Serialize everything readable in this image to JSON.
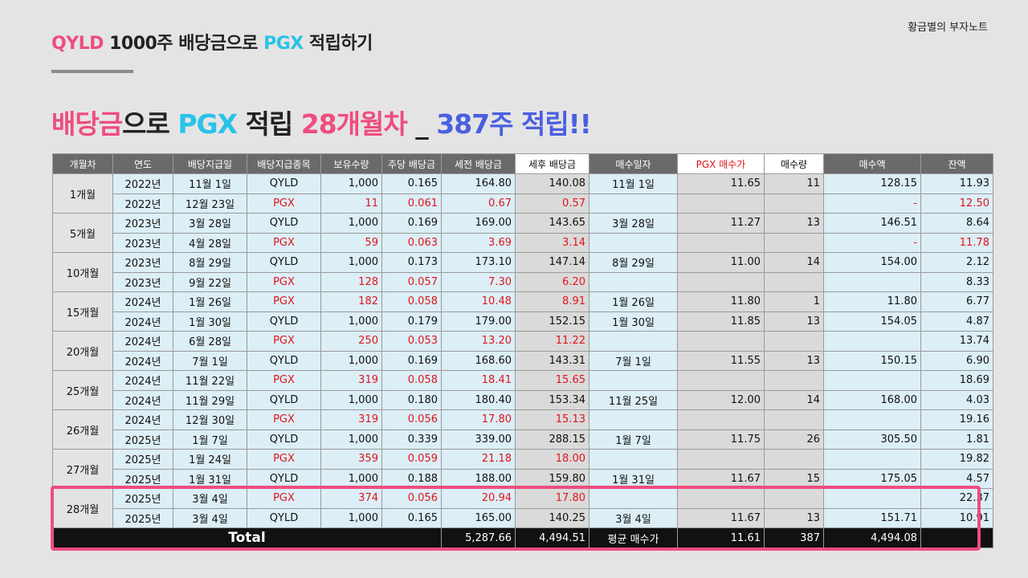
{
  "brand": "황금별의 부자노트",
  "subtitle": {
    "part1": "QYLD",
    "part2": " 1000주 배당금으로 ",
    "part3": "PGX",
    "part4": " 적립하기"
  },
  "headline": {
    "part1": "배당금",
    "part2": "으로 ",
    "part3": "PGX",
    "part4": " 적립 ",
    "part5": "28개월차",
    "part6": " _ ",
    "part7": "387주 적립!!"
  },
  "columns": [
    "개월차",
    "연도",
    "배당지급일",
    "배당지급종목",
    "보유수량",
    "주당 배당금",
    "세전 배당금",
    "세후 배당금",
    "매수일자",
    "PGX 매수가",
    "매수량",
    "매수액",
    "잔액"
  ],
  "groups": [
    {
      "label": "1개월",
      "rows": [
        {
          "year": "2022년",
          "date": "11월 1일",
          "ticker": "QYLD",
          "qty": "1,000",
          "dps": "0.165",
          "pre": "164.80",
          "post": "140.08",
          "buy_date": "11월 1일",
          "price": "11.65",
          "buy_qty": "11",
          "amount": "128.15",
          "balance": "11.93"
        },
        {
          "year": "2022년",
          "date": "12월 23일",
          "ticker": "PGX",
          "qty": "11",
          "dps": "0.061",
          "pre": "0.67",
          "post": "0.57",
          "buy_date": "",
          "price": "",
          "buy_qty": "",
          "amount": "-",
          "balance": "12.50"
        }
      ]
    },
    {
      "label": "5개월",
      "rows": [
        {
          "year": "2023년",
          "date": "3월 28일",
          "ticker": "QYLD",
          "qty": "1,000",
          "dps": "0.169",
          "pre": "169.00",
          "post": "143.65",
          "buy_date": "3월 28일",
          "price": "11.27",
          "buy_qty": "13",
          "amount": "146.51",
          "balance": "8.64"
        },
        {
          "year": "2023년",
          "date": "4월 28일",
          "ticker": "PGX",
          "qty": "59",
          "dps": "0.063",
          "pre": "3.69",
          "post": "3.14",
          "buy_date": "",
          "price": "",
          "buy_qty": "",
          "amount": "-",
          "balance": "11.78"
        }
      ]
    },
    {
      "label": "10개월",
      "rows": [
        {
          "year": "2023년",
          "date": "8월 29일",
          "ticker": "QYLD",
          "qty": "1,000",
          "dps": "0.173",
          "pre": "173.10",
          "post": "147.14",
          "buy_date": "8월 29일",
          "price": "11.00",
          "buy_qty": "14",
          "amount": "154.00",
          "balance": "2.12"
        },
        {
          "year": "2023년",
          "date": "9월 22일",
          "ticker": "PGX",
          "qty": "128",
          "dps": "0.057",
          "pre": "7.30",
          "post": "6.20",
          "buy_date": "",
          "price": "",
          "buy_qty": "",
          "amount": "",
          "balance": "8.33"
        }
      ]
    },
    {
      "label": "15개월",
      "rows": [
        {
          "year": "2024년",
          "date": "1월 26일",
          "ticker": "PGX",
          "qty": "182",
          "dps": "0.058",
          "pre": "10.48",
          "post": "8.91",
          "buy_date": "1월 26일",
          "price": "11.80",
          "buy_qty": "1",
          "amount": "11.80",
          "balance": "6.77"
        },
        {
          "year": "2024년",
          "date": "1월 30일",
          "ticker": "QYLD",
          "qty": "1,000",
          "dps": "0.179",
          "pre": "179.00",
          "post": "152.15",
          "buy_date": "1월 30일",
          "price": "11.85",
          "buy_qty": "13",
          "amount": "154.05",
          "balance": "4.87"
        }
      ]
    },
    {
      "label": "20개월",
      "rows": [
        {
          "year": "2024년",
          "date": "6월 28일",
          "ticker": "PGX",
          "qty": "250",
          "dps": "0.053",
          "pre": "13.20",
          "post": "11.22",
          "buy_date": "",
          "price": "",
          "buy_qty": "",
          "amount": "",
          "balance": "13.74"
        },
        {
          "year": "2024년",
          "date": "7월 1일",
          "ticker": "QYLD",
          "qty": "1,000",
          "dps": "0.169",
          "pre": "168.60",
          "post": "143.31",
          "buy_date": "7월 1일",
          "price": "11.55",
          "buy_qty": "13",
          "amount": "150.15",
          "balance": "6.90"
        }
      ]
    },
    {
      "label": "25개월",
      "rows": [
        {
          "year": "2024년",
          "date": "11월 22일",
          "ticker": "PGX",
          "qty": "319",
          "dps": "0.058",
          "pre": "18.41",
          "post": "15.65",
          "buy_date": "",
          "price": "",
          "buy_qty": "",
          "amount": "",
          "balance": "18.69"
        },
        {
          "year": "2024년",
          "date": "11월 29일",
          "ticker": "QYLD",
          "qty": "1,000",
          "dps": "0.180",
          "pre": "180.40",
          "post": "153.34",
          "buy_date": "11월 25일",
          "price": "12.00",
          "buy_qty": "14",
          "amount": "168.00",
          "balance": "4.03"
        }
      ]
    },
    {
      "label": "26개월",
      "rows": [
        {
          "year": "2024년",
          "date": "12월 30일",
          "ticker": "PGX",
          "qty": "319",
          "dps": "0.056",
          "pre": "17.80",
          "post": "15.13",
          "buy_date": "",
          "price": "",
          "buy_qty": "",
          "amount": "",
          "balance": "19.16"
        },
        {
          "year": "2025년",
          "date": "1월 7일",
          "ticker": "QYLD",
          "qty": "1,000",
          "dps": "0.339",
          "pre": "339.00",
          "post": "288.15",
          "buy_date": "1월 7일",
          "price": "11.75",
          "buy_qty": "26",
          "amount": "305.50",
          "balance": "1.81"
        }
      ]
    },
    {
      "label": "27개월",
      "rows": [
        {
          "year": "2025년",
          "date": "1월 24일",
          "ticker": "PGX",
          "qty": "359",
          "dps": "0.059",
          "pre": "21.18",
          "post": "18.00",
          "buy_date": "",
          "price": "",
          "buy_qty": "",
          "amount": "",
          "balance": "19.82"
        },
        {
          "year": "2025년",
          "date": "1월 31일",
          "ticker": "QYLD",
          "qty": "1,000",
          "dps": "0.188",
          "pre": "188.00",
          "post": "159.80",
          "buy_date": "1월 31일",
          "price": "11.67",
          "buy_qty": "15",
          "amount": "175.05",
          "balance": "4.57"
        }
      ]
    },
    {
      "label": "28개월",
      "rows": [
        {
          "year": "2025년",
          "date": "3월 4일",
          "ticker": "PGX",
          "qty": "374",
          "dps": "0.056",
          "pre": "20.94",
          "post": "17.80",
          "buy_date": "",
          "price": "",
          "buy_qty": "",
          "amount": "",
          "balance": "22.37"
        },
        {
          "year": "2025년",
          "date": "3월 4일",
          "ticker": "QYLD",
          "qty": "1,000",
          "dps": "0.165",
          "pre": "165.00",
          "post": "140.25",
          "buy_date": "3월 4일",
          "price": "11.67",
          "buy_qty": "13",
          "amount": "151.71",
          "balance": "10.91"
        }
      ]
    }
  ],
  "total": {
    "label": "Total",
    "pre": "5,287.66",
    "post": "4,494.51",
    "avg_label": "평균 매수가",
    "price": "11.61",
    "buy_qty": "387",
    "amount": "4,494.08",
    "balance": ""
  },
  "colors": {
    "pink": "#ee4d7e",
    "cyan": "#28c3e8",
    "blue": "#4a5fe0",
    "red": "#e0141b",
    "cell_bg": "#dceef6",
    "header_bg": "#6a6a6a"
  }
}
